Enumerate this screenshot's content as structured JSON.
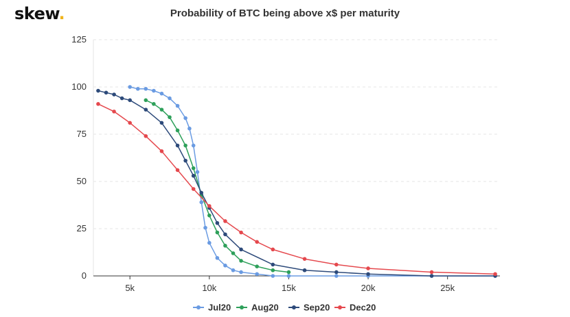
{
  "brand": {
    "name": "skew",
    "dot": "."
  },
  "chart_data": {
    "type": "line",
    "title": "Probability of BTC being above x$ per maturity",
    "xlabel": "",
    "ylabel": "",
    "xlim": [
      2700,
      28300
    ],
    "ylim": [
      0,
      125
    ],
    "x_ticks": [
      5000,
      10000,
      15000,
      20000,
      25000
    ],
    "x_tick_labels": [
      "5k",
      "10k",
      "15k",
      "20k",
      "25k"
    ],
    "y_ticks": [
      0,
      25,
      50,
      75,
      100,
      125
    ],
    "y_tick_labels": [
      "0",
      "25",
      "50",
      "75",
      "100",
      "125"
    ],
    "grid": {
      "x": false,
      "y": true,
      "style": "dashed"
    },
    "legend_position": "bottom",
    "series": [
      {
        "name": "Jul20",
        "color": "#6a9be2",
        "x": [
          5000,
          5500,
          6000,
          6500,
          7000,
          7500,
          8000,
          8500,
          8750,
          9000,
          9250,
          9500,
          9750,
          10000,
          10500,
          11000,
          11500,
          12000,
          13000,
          14000,
          15000,
          18000,
          20000,
          24000,
          28000
        ],
        "y": [
          100,
          99,
          99,
          98,
          96.5,
          94,
          90,
          83.5,
          78,
          69,
          55,
          39,
          25.5,
          17.5,
          9.5,
          5.5,
          3,
          2,
          1,
          0,
          0,
          0,
          0,
          0,
          0
        ]
      },
      {
        "name": "Aug20",
        "color": "#2ea05a",
        "x": [
          6000,
          6500,
          7000,
          7500,
          8000,
          8500,
          9000,
          9500,
          10000,
          10500,
          11000,
          11500,
          12000,
          13000,
          14000,
          15000
        ],
        "y": [
          93,
          91,
          88,
          84,
          77,
          69,
          57,
          43,
          32,
          23,
          16,
          12,
          8,
          5,
          3,
          2
        ]
      },
      {
        "name": "Sep20",
        "color": "#2d4a7a",
        "x": [
          3000,
          3500,
          4000,
          4500,
          5000,
          6000,
          7000,
          8000,
          8500,
          9000,
          9500,
          10000,
          10500,
          11000,
          12000,
          14000,
          16000,
          18000,
          20000,
          24000,
          28000
        ],
        "y": [
          98,
          97,
          96,
          94,
          93,
          88,
          81,
          69,
          61,
          53,
          44,
          36,
          28,
          22,
          14,
          6,
          3,
          2,
          1,
          0,
          0
        ]
      },
      {
        "name": "Dec20",
        "color": "#e5484d",
        "x": [
          3000,
          4000,
          5000,
          6000,
          7000,
          8000,
          9000,
          10000,
          11000,
          12000,
          13000,
          14000,
          16000,
          18000,
          20000,
          24000,
          28000
        ],
        "y": [
          91,
          87,
          81,
          74,
          66,
          56,
          46,
          37,
          29,
          23,
          18,
          14,
          9,
          6,
          4,
          2,
          1
        ]
      }
    ]
  }
}
